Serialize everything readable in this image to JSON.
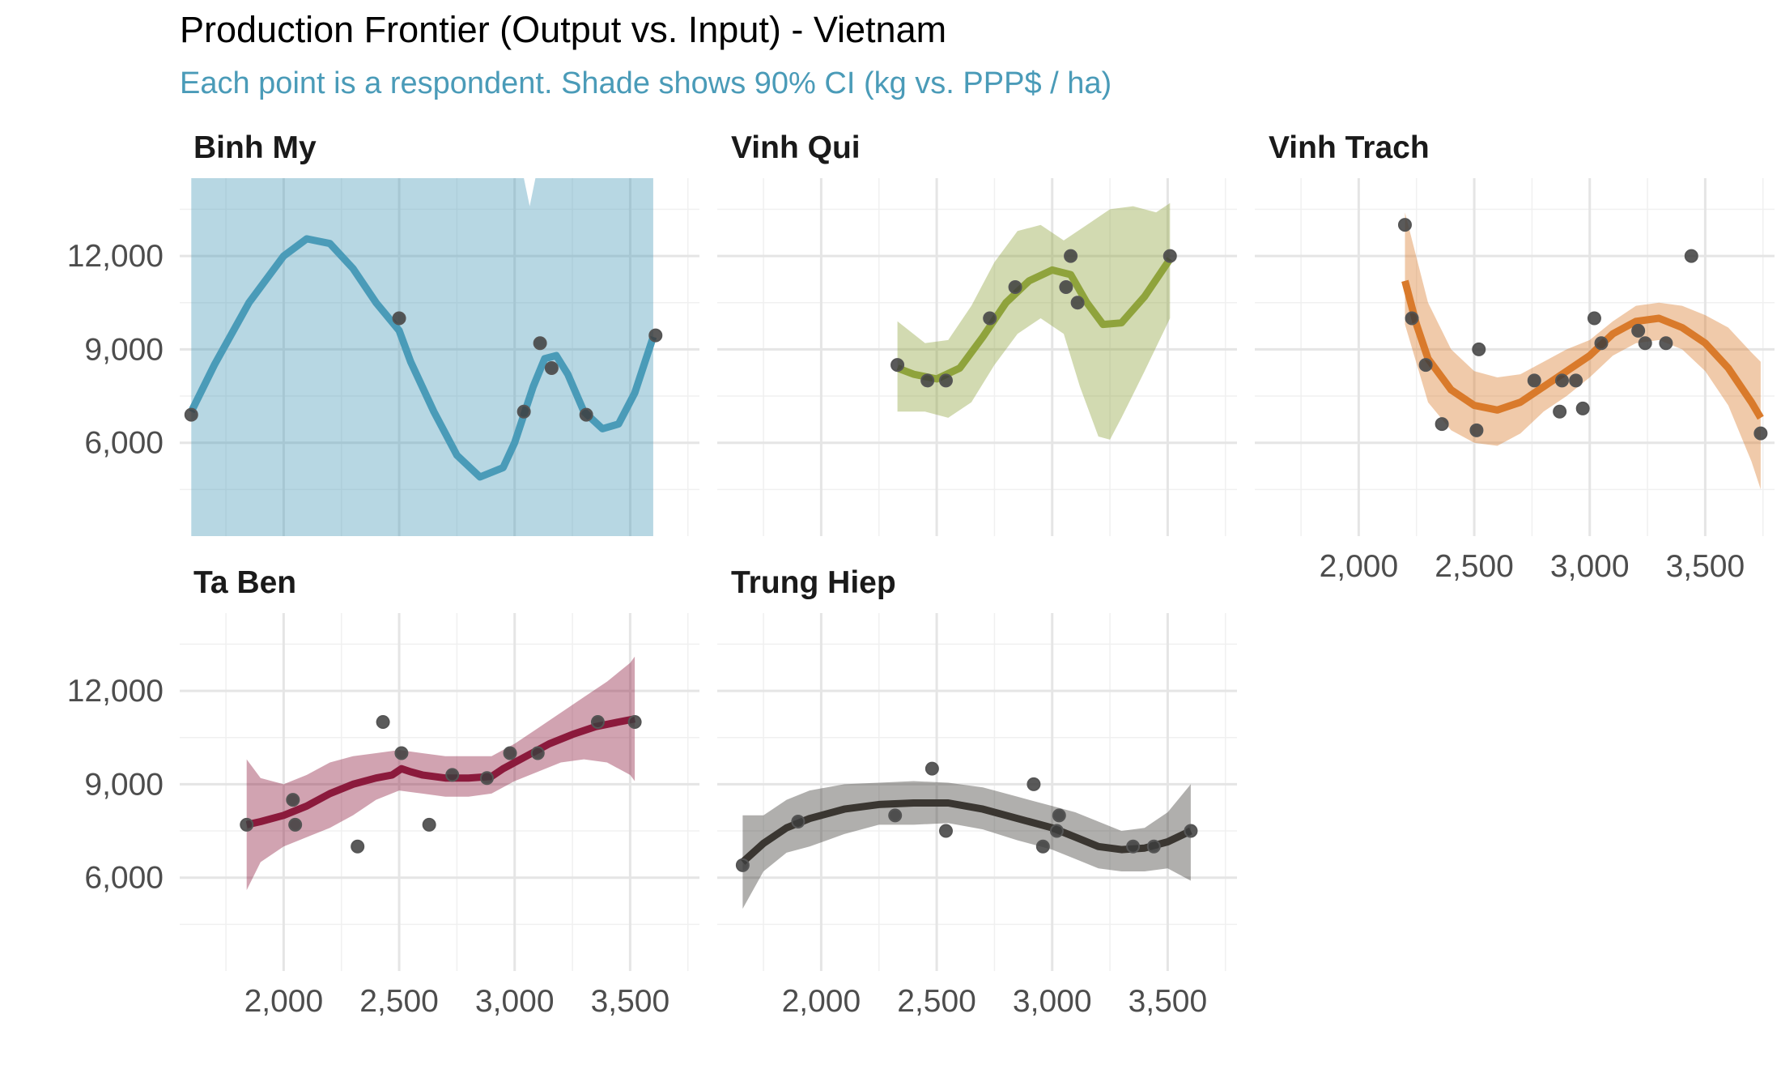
{
  "chart_data": {
    "type": "scatter",
    "title": "Production Frontier (Output vs. Input) - Vietnam",
    "subtitle": "Each point is a respondent. Shade shows 90% CI (kg vs. PPP$ / ha)",
    "xlabel": "",
    "ylabel": "",
    "xlim": [
      1550,
      3800
    ],
    "ylim": [
      3000,
      14500
    ],
    "x_ticks": [
      2000,
      2500,
      3000,
      3500
    ],
    "x_tick_labels": [
      "2,000",
      "2,500",
      "3,000",
      "3,500"
    ],
    "y_ticks": [
      6000,
      9000,
      12000
    ],
    "y_tick_labels": [
      "6,000",
      "9,000",
      "12,000"
    ],
    "grid": true,
    "panels": [
      {
        "name": "Binh My",
        "color": "#4a9bb8",
        "points": [
          [
            1600,
            6900
          ],
          [
            2500,
            10000
          ],
          [
            3040,
            7000
          ],
          [
            3110,
            9200
          ],
          [
            3160,
            8400
          ],
          [
            3310,
            6900
          ],
          [
            3610,
            9450
          ]
        ],
        "fit": [
          [
            1600,
            7000
          ],
          [
            1700,
            8500
          ],
          [
            1850,
            10500
          ],
          [
            2000,
            12000
          ],
          [
            2100,
            12550
          ],
          [
            2200,
            12400
          ],
          [
            2300,
            11600
          ],
          [
            2400,
            10500
          ],
          [
            2500,
            9600
          ],
          [
            2550,
            8600
          ],
          [
            2650,
            7000
          ],
          [
            2750,
            5600
          ],
          [
            2850,
            4900
          ],
          [
            2950,
            5200
          ],
          [
            3000,
            6000
          ],
          [
            3080,
            7800
          ],
          [
            3130,
            8700
          ],
          [
            3180,
            8800
          ],
          [
            3230,
            8200
          ],
          [
            3300,
            7000
          ],
          [
            3380,
            6450
          ],
          [
            3450,
            6600
          ],
          [
            3520,
            7600
          ],
          [
            3600,
            9400
          ]
        ],
        "ci_upper": [
          [
            1600,
            14500
          ],
          [
            3000,
            14500
          ],
          [
            3040,
            14500
          ],
          [
            3065,
            13600
          ],
          [
            3090,
            14500
          ],
          [
            3600,
            14500
          ]
        ],
        "ci_lower": [
          [
            1600,
            3000
          ],
          [
            3600,
            3000
          ]
        ]
      },
      {
        "name": "Vinh Qui",
        "color": "#8fa33c",
        "points": [
          [
            2330,
            8500
          ],
          [
            2460,
            8000
          ],
          [
            2540,
            8000
          ],
          [
            2730,
            10000
          ],
          [
            2840,
            11000
          ],
          [
            3060,
            11000
          ],
          [
            3080,
            12000
          ],
          [
            3110,
            10500
          ],
          [
            3510,
            12000
          ]
        ],
        "fit": [
          [
            2330,
            8400
          ],
          [
            2400,
            8200
          ],
          [
            2500,
            8050
          ],
          [
            2600,
            8400
          ],
          [
            2700,
            9400
          ],
          [
            2800,
            10500
          ],
          [
            2900,
            11200
          ],
          [
            3000,
            11550
          ],
          [
            3080,
            11400
          ],
          [
            3150,
            10500
          ],
          [
            3220,
            9800
          ],
          [
            3300,
            9850
          ],
          [
            3400,
            10700
          ],
          [
            3510,
            11900
          ]
        ],
        "ci_upper": [
          [
            2330,
            9900
          ],
          [
            2450,
            9200
          ],
          [
            2550,
            9300
          ],
          [
            2650,
            10400
          ],
          [
            2750,
            11800
          ],
          [
            2850,
            12800
          ],
          [
            2950,
            13000
          ],
          [
            3050,
            12500
          ],
          [
            3150,
            13000
          ],
          [
            3250,
            13500
          ],
          [
            3350,
            13600
          ],
          [
            3450,
            13400
          ],
          [
            3510,
            13700
          ]
        ],
        "ci_lower": [
          [
            2330,
            7000
          ],
          [
            2450,
            7000
          ],
          [
            2550,
            6800
          ],
          [
            2650,
            7300
          ],
          [
            2750,
            8500
          ],
          [
            2850,
            9500
          ],
          [
            2950,
            10000
          ],
          [
            3050,
            9500
          ],
          [
            3120,
            7800
          ],
          [
            3200,
            6200
          ],
          [
            3250,
            6100
          ],
          [
            3300,
            6800
          ],
          [
            3400,
            8300
          ],
          [
            3510,
            10000
          ]
        ]
      },
      {
        "name": "Vinh Trach",
        "color": "#d97a2b",
        "points": [
          [
            2200,
            13000
          ],
          [
            2230,
            10000
          ],
          [
            2290,
            8500
          ],
          [
            2360,
            6600
          ],
          [
            2510,
            6400
          ],
          [
            2520,
            9000
          ],
          [
            2760,
            8000
          ],
          [
            2870,
            7000
          ],
          [
            2880,
            8000
          ],
          [
            2940,
            8000
          ],
          [
            2970,
            7100
          ],
          [
            3020,
            10000
          ],
          [
            3050,
            9200
          ],
          [
            3210,
            9600
          ],
          [
            3240,
            9200
          ],
          [
            3330,
            9200
          ],
          [
            3440,
            12000
          ],
          [
            3740,
            6300
          ]
        ],
        "fit": [
          [
            2200,
            11200
          ],
          [
            2250,
            9800
          ],
          [
            2300,
            8700
          ],
          [
            2400,
            7700
          ],
          [
            2500,
            7200
          ],
          [
            2600,
            7050
          ],
          [
            2700,
            7300
          ],
          [
            2800,
            7800
          ],
          [
            2900,
            8300
          ],
          [
            3000,
            8800
          ],
          [
            3100,
            9500
          ],
          [
            3200,
            9900
          ],
          [
            3300,
            10000
          ],
          [
            3400,
            9700
          ],
          [
            3500,
            9200
          ],
          [
            3600,
            8400
          ],
          [
            3700,
            7300
          ],
          [
            3740,
            6800
          ]
        ],
        "ci_upper": [
          [
            2200,
            13400
          ],
          [
            2300,
            10500
          ],
          [
            2400,
            9000
          ],
          [
            2500,
            8300
          ],
          [
            2600,
            8100
          ],
          [
            2700,
            8200
          ],
          [
            2800,
            8600
          ],
          [
            2900,
            9000
          ],
          [
            3000,
            9300
          ],
          [
            3100,
            9900
          ],
          [
            3200,
            10400
          ],
          [
            3300,
            10500
          ],
          [
            3400,
            10400
          ],
          [
            3500,
            10100
          ],
          [
            3600,
            9700
          ],
          [
            3700,
            8900
          ],
          [
            3740,
            8600
          ]
        ],
        "ci_lower": [
          [
            2200,
            9800
          ],
          [
            2300,
            7300
          ],
          [
            2400,
            6400
          ],
          [
            2500,
            6000
          ],
          [
            2600,
            5900
          ],
          [
            2700,
            6300
          ],
          [
            2800,
            7000
          ],
          [
            2900,
            7500
          ],
          [
            3000,
            8100
          ],
          [
            3100,
            8800
          ],
          [
            3200,
            9200
          ],
          [
            3300,
            9300
          ],
          [
            3400,
            9000
          ],
          [
            3500,
            8300
          ],
          [
            3600,
            7200
          ],
          [
            3700,
            5400
          ],
          [
            3740,
            4500
          ]
        ]
      },
      {
        "name": "Ta Ben",
        "color": "#8b1a3c",
        "points": [
          [
            1840,
            7700
          ],
          [
            2040,
            8500
          ],
          [
            2050,
            7700
          ],
          [
            2320,
            7000
          ],
          [
            2430,
            11000
          ],
          [
            2510,
            10000
          ],
          [
            2630,
            7700
          ],
          [
            2730,
            9300
          ],
          [
            2880,
            9200
          ],
          [
            2980,
            10000
          ],
          [
            3100,
            10000
          ],
          [
            3360,
            11000
          ],
          [
            3520,
            11000
          ]
        ],
        "fit": [
          [
            1840,
            7700
          ],
          [
            1900,
            7800
          ],
          [
            2000,
            8000
          ],
          [
            2100,
            8300
          ],
          [
            2200,
            8700
          ],
          [
            2300,
            9000
          ],
          [
            2400,
            9200
          ],
          [
            2470,
            9300
          ],
          [
            2510,
            9500
          ],
          [
            2550,
            9400
          ],
          [
            2600,
            9300
          ],
          [
            2700,
            9200
          ],
          [
            2800,
            9200
          ],
          [
            2900,
            9250
          ],
          [
            2950,
            9500
          ],
          [
            3050,
            9900
          ],
          [
            3150,
            10300
          ],
          [
            3250,
            10600
          ],
          [
            3350,
            10850
          ],
          [
            3450,
            11000
          ],
          [
            3520,
            11100
          ]
        ],
        "ci_upper": [
          [
            1840,
            9800
          ],
          [
            1900,
            9200
          ],
          [
            2000,
            9000
          ],
          [
            2100,
            9300
          ],
          [
            2200,
            9700
          ],
          [
            2300,
            9900
          ],
          [
            2400,
            10000
          ],
          [
            2500,
            10100
          ],
          [
            2600,
            10000
          ],
          [
            2700,
            9900
          ],
          [
            2800,
            9900
          ],
          [
            2900,
            9900
          ],
          [
            3000,
            10300
          ],
          [
            3100,
            10800
          ],
          [
            3200,
            11300
          ],
          [
            3300,
            11800
          ],
          [
            3400,
            12300
          ],
          [
            3500,
            12900
          ],
          [
            3520,
            13100
          ]
        ],
        "ci_lower": [
          [
            1840,
            5600
          ],
          [
            1900,
            6500
          ],
          [
            2000,
            7000
          ],
          [
            2100,
            7300
          ],
          [
            2200,
            7600
          ],
          [
            2300,
            8000
          ],
          [
            2400,
            8500
          ],
          [
            2500,
            8800
          ],
          [
            2600,
            8700
          ],
          [
            2700,
            8600
          ],
          [
            2800,
            8600
          ],
          [
            2900,
            8700
          ],
          [
            3000,
            9100
          ],
          [
            3100,
            9400
          ],
          [
            3200,
            9700
          ],
          [
            3300,
            9800
          ],
          [
            3400,
            9700
          ],
          [
            3500,
            9300
          ],
          [
            3520,
            9100
          ]
        ]
      },
      {
        "name": "Trung Hiep",
        "color": "#3a3631",
        "points": [
          [
            1660,
            6400
          ],
          [
            1900,
            7800
          ],
          [
            2320,
            8000
          ],
          [
            2480,
            9500
          ],
          [
            2540,
            7500
          ],
          [
            2920,
            9000
          ],
          [
            2960,
            7000
          ],
          [
            3020,
            7500
          ],
          [
            3030,
            8000
          ],
          [
            3350,
            7000
          ],
          [
            3440,
            7000
          ],
          [
            3600,
            7500
          ]
        ],
        "fit": [
          [
            1660,
            6500
          ],
          [
            1750,
            7100
          ],
          [
            1850,
            7600
          ],
          [
            1950,
            7900
          ],
          [
            2100,
            8200
          ],
          [
            2250,
            8350
          ],
          [
            2400,
            8400
          ],
          [
            2550,
            8400
          ],
          [
            2700,
            8200
          ],
          [
            2850,
            7900
          ],
          [
            3000,
            7600
          ],
          [
            3100,
            7300
          ],
          [
            3200,
            7000
          ],
          [
            3300,
            6900
          ],
          [
            3400,
            6950
          ],
          [
            3500,
            7150
          ],
          [
            3600,
            7500
          ]
        ],
        "ci_upper": [
          [
            1660,
            8000
          ],
          [
            1750,
            8000
          ],
          [
            1850,
            8500
          ],
          [
            1950,
            8800
          ],
          [
            2100,
            9000
          ],
          [
            2250,
            9050
          ],
          [
            2400,
            9100
          ],
          [
            2550,
            9050
          ],
          [
            2700,
            8900
          ],
          [
            2850,
            8600
          ],
          [
            3000,
            8300
          ],
          [
            3100,
            8100
          ],
          [
            3200,
            7800
          ],
          [
            3300,
            7500
          ],
          [
            3400,
            7600
          ],
          [
            3500,
            8100
          ],
          [
            3600,
            9000
          ]
        ],
        "ci_lower": [
          [
            1660,
            5000
          ],
          [
            1750,
            6200
          ],
          [
            1850,
            6800
          ],
          [
            1950,
            7000
          ],
          [
            2100,
            7400
          ],
          [
            2250,
            7700
          ],
          [
            2400,
            7700
          ],
          [
            2550,
            7750
          ],
          [
            2700,
            7550
          ],
          [
            2850,
            7200
          ],
          [
            3000,
            6900
          ],
          [
            3100,
            6600
          ],
          [
            3200,
            6300
          ],
          [
            3300,
            6200
          ],
          [
            3400,
            6200
          ],
          [
            3500,
            6300
          ],
          [
            3600,
            5900
          ]
        ]
      }
    ]
  }
}
